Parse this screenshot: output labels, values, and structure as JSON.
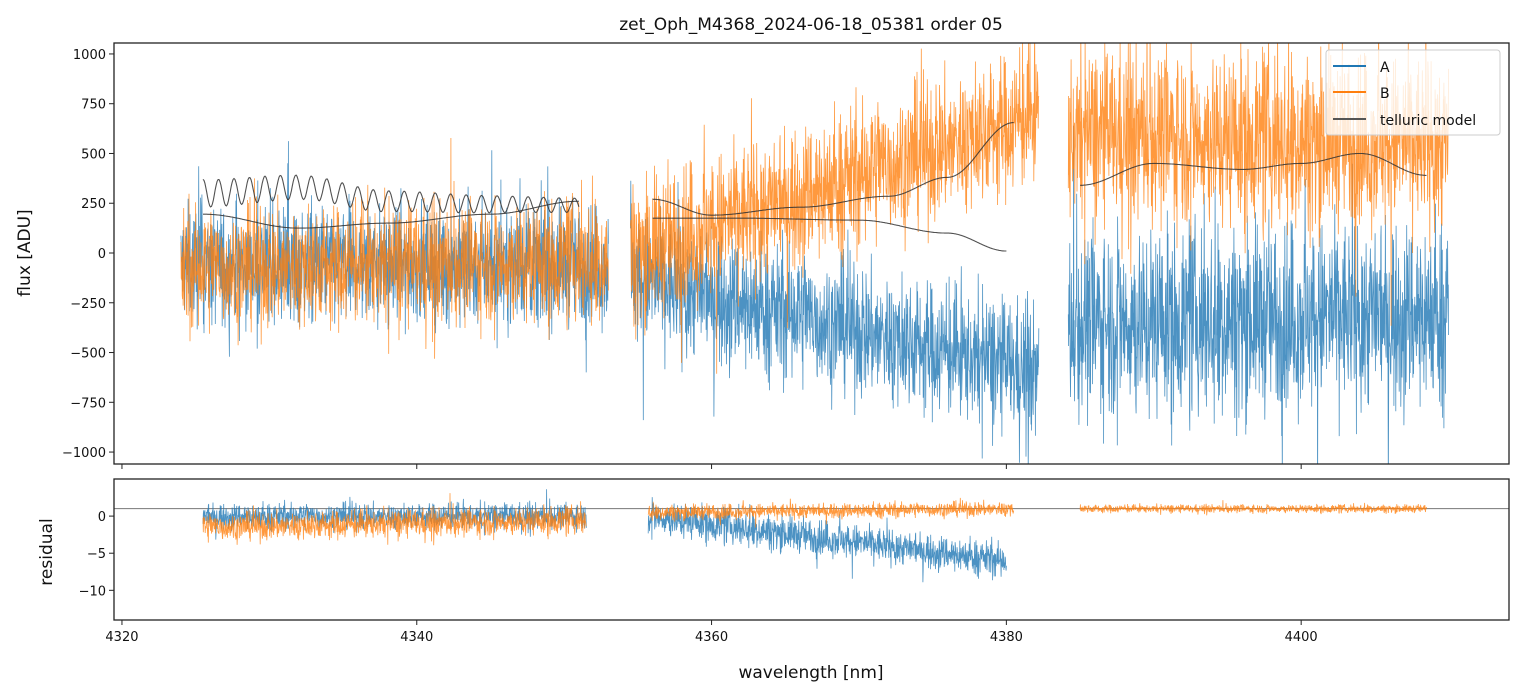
{
  "chart_data": {
    "type": "line",
    "title": "zet_Oph_M4368_2024-06-18_05381  order 05",
    "xlabel": "wavelength [nm]",
    "xlim": [
      4319.46,
      4414.1
    ],
    "xticks": [
      4320,
      4340,
      4360,
      4380,
      4400
    ],
    "panels": [
      {
        "name": "flux",
        "ylabel": "flux [ADU]",
        "ylim": [
          -1060,
          1055
        ],
        "yticks": [
          -1000,
          -750,
          -500,
          -250,
          0,
          250,
          500,
          750,
          1000
        ],
        "legend": {
          "placement": "top-right",
          "entries": [
            "A",
            "B",
            "telluric model"
          ]
        },
        "series": [
          {
            "name": "A",
            "color": "#1f77b4",
            "segments": [
              {
                "range": [
                  4324.0,
                  4353.0
                ],
                "mean_start": -60,
                "mean_end": -60,
                "spread": 380
              },
              {
                "range": [
                  4354.5,
                  4382.2
                ],
                "mean_start": -120,
                "mean_end": -600,
                "spread": 420
              },
              {
                "range": [
                  4384.2,
                  4410.0
                ],
                "mean_start": -350,
                "mean_end": -300,
                "spread": 600
              }
            ]
          },
          {
            "name": "B",
            "color": "#ff7f0e",
            "segments": [
              {
                "range": [
                  4324.0,
                  4353.0
                ],
                "mean_start": -80,
                "mean_end": -30,
                "spread": 380
              },
              {
                "range": [
                  4354.5,
                  4382.2
                ],
                "mean_start": 0,
                "mean_end": 700,
                "spread": 450
              },
              {
                "range": [
                  4384.2,
                  4410.0
                ],
                "mean_start": 600,
                "mean_end": 550,
                "spread": 550
              }
            ]
          },
          {
            "name": "telluric model",
            "color": "#333333",
            "curves": [
              {
                "x": [
                  4325.5,
                  4332,
                  4338,
                  4345,
                  4351
                ],
                "y": [
                  300,
                  330,
                  260,
                  245,
                  240
                ],
                "ripple": 70,
                "ripple_period": 1.05
              },
              {
                "x": [
                  4325.5,
                  4332,
                  4338,
                  4345,
                  4351
                ],
                "y": [
                  195,
                  125,
                  150,
                  195,
                  260
                ]
              },
              {
                "x": [
                  4356,
                  4360,
                  4366,
                  4372,
                  4376,
                  4380.5
                ],
                "y": [
                  270,
                  190,
                  230,
                  285,
                  380,
                  655
                ]
              },
              {
                "x": [
                  4356,
                  4362,
                  4370,
                  4376,
                  4380
                ],
                "y": [
                  175,
                  175,
                  165,
                  100,
                  10
                ]
              },
              {
                "x": [
                  4385,
                  4390,
                  4396,
                  4400,
                  4404,
                  4408.5
                ],
                "y": [
                  340,
                  450,
                  420,
                  450,
                  500,
                  390
                ]
              }
            ]
          }
        ]
      },
      {
        "name": "residual",
        "ylabel": "residual",
        "ylim": [
          -14,
          5
        ],
        "yticks": [
          -10,
          -5,
          0
        ],
        "reference_line": 1,
        "series": [
          {
            "name": "A",
            "color": "#1f77b4",
            "segments": [
              {
                "range": [
                  4325.5,
                  4351.5
                ],
                "mean_start": 0,
                "mean_end": 0,
                "spread": 2.2
              },
              {
                "range": [
                  4355.7,
                  4380.0
                ],
                "mean_start": 0,
                "mean_end": -6,
                "spread": 3
              }
            ]
          },
          {
            "name": "B",
            "color": "#ff7f0e",
            "segments": [
              {
                "range": [
                  4325.5,
                  4351.5
                ],
                "mean_start": -1.5,
                "mean_end": -0.5,
                "spread": 2.4
              },
              {
                "range": [
                  4355.7,
                  4380.5
                ],
                "mean_start": 0.5,
                "mean_end": 1,
                "spread": 1.3
              },
              {
                "range": [
                  4385.0,
                  4408.5
                ],
                "mean_start": 1,
                "mean_end": 1,
                "spread": 0.7
              }
            ]
          }
        ]
      }
    ]
  }
}
